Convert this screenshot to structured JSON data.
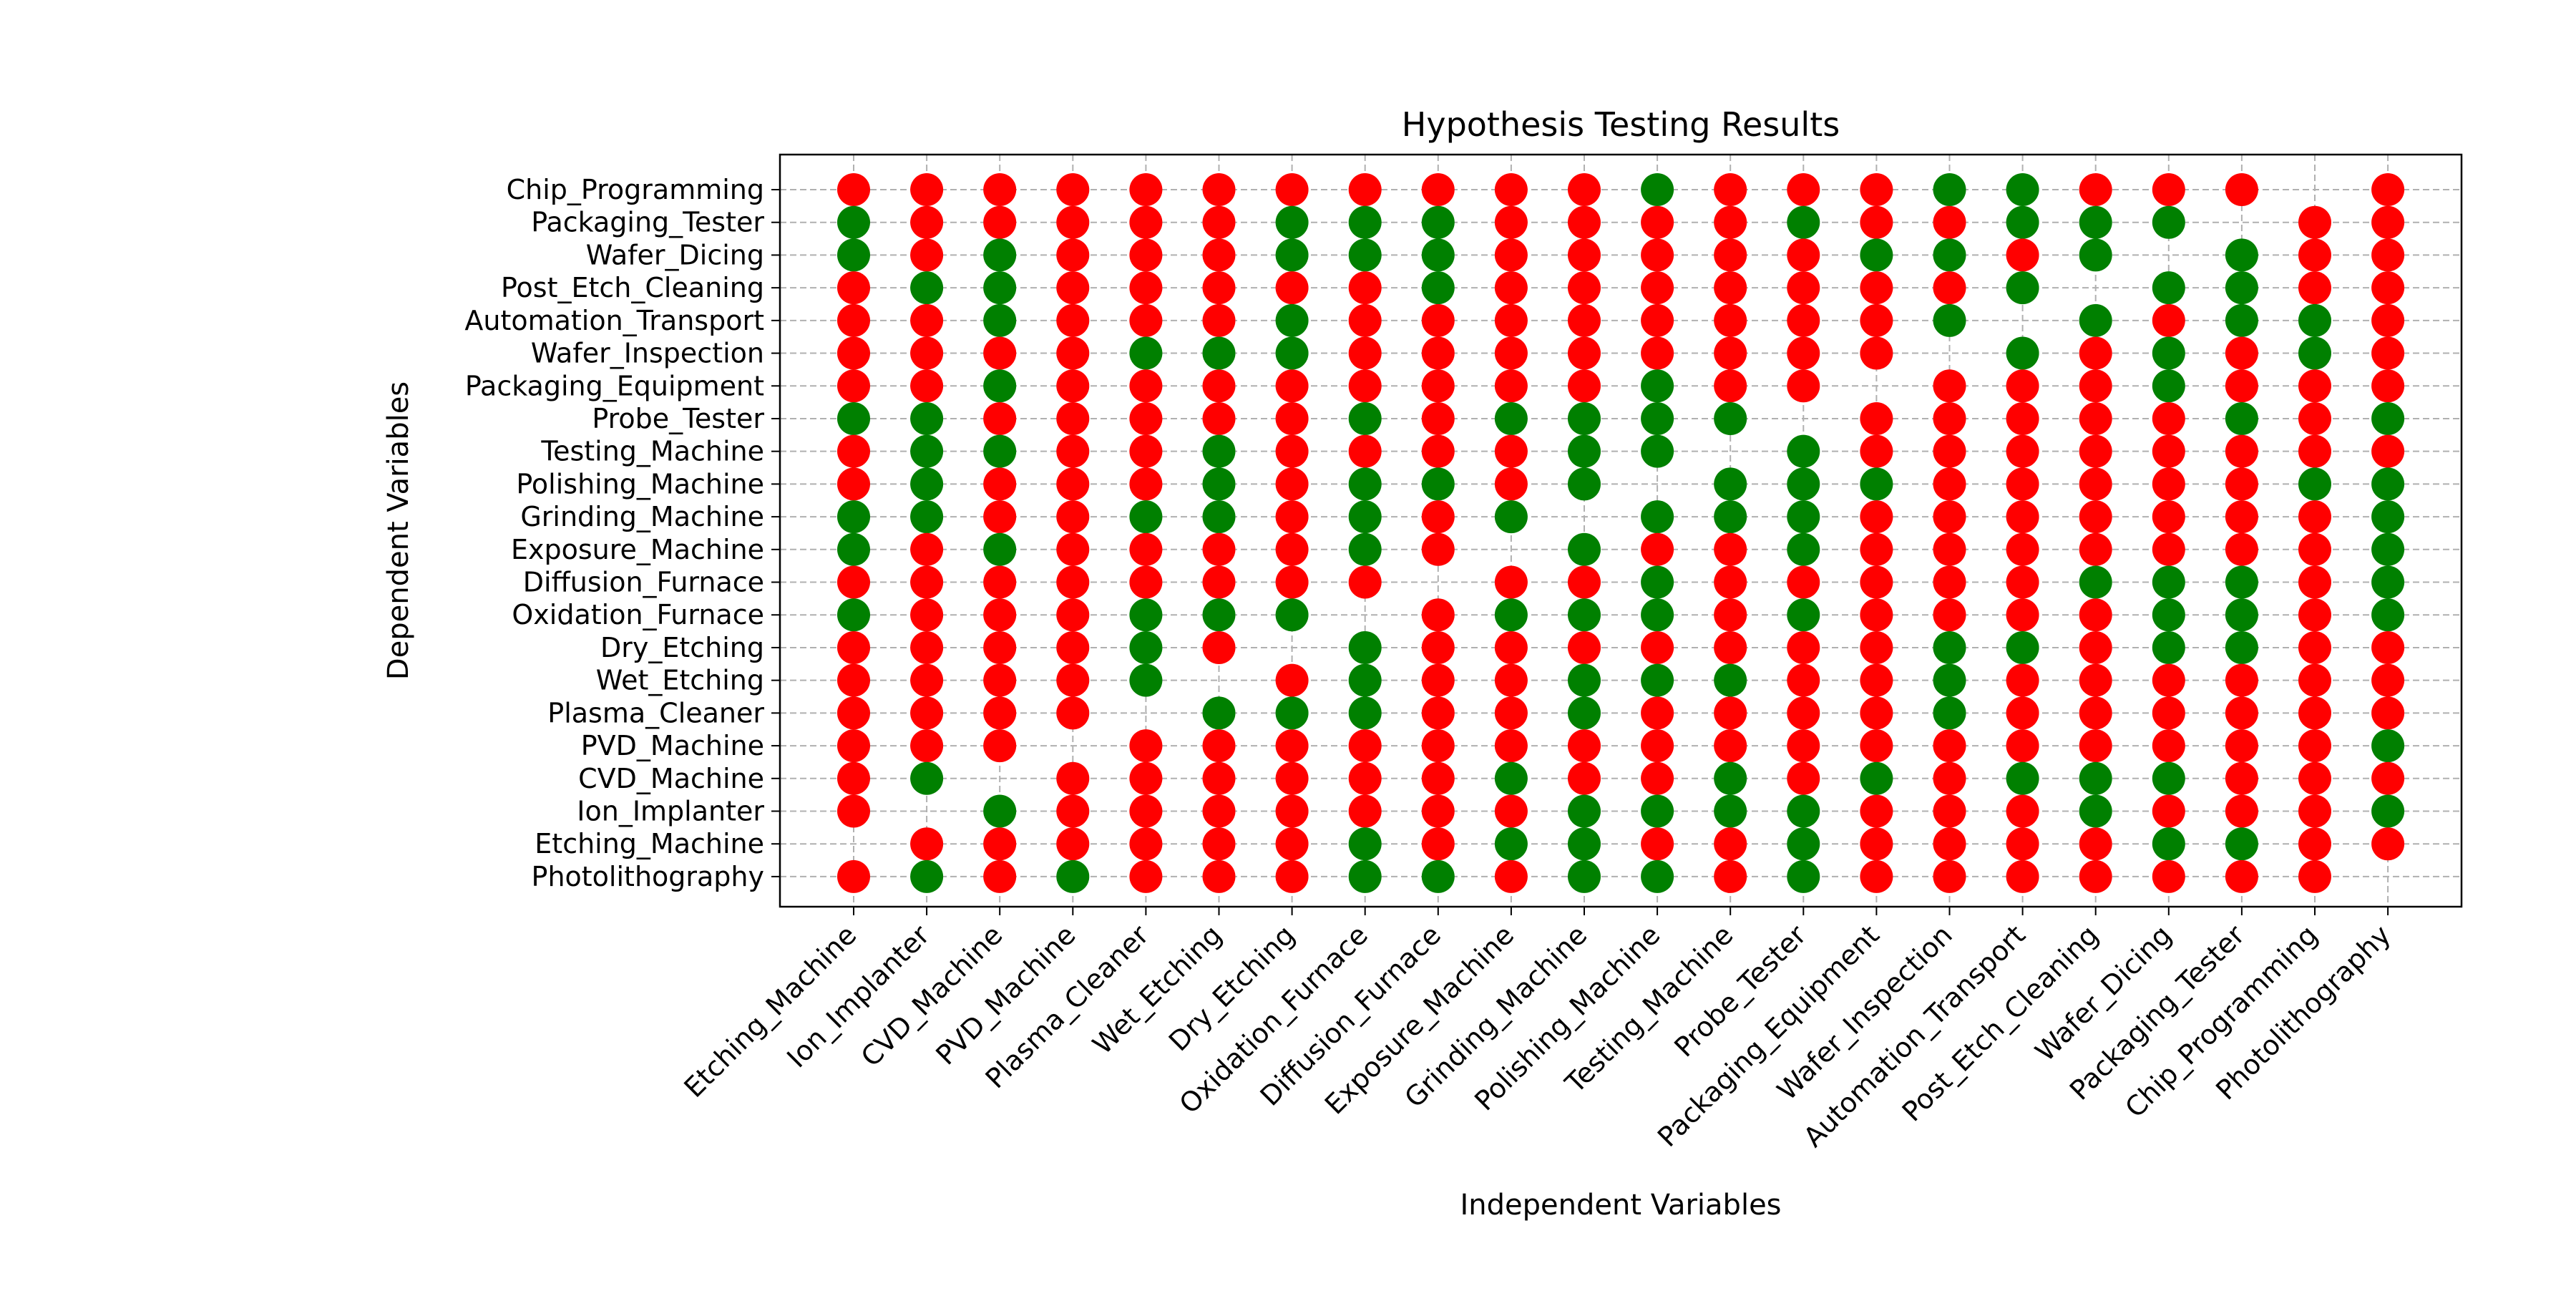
{
  "chart_data": {
    "type": "scatter",
    "title": "Hypothesis Testing Results",
    "xlabel": "Independent Variables",
    "ylabel": "Dependent Variables",
    "grid": true,
    "x_categories": [
      "Etching_Machine",
      "Ion_Implanter",
      "CVD_Machine",
      "PVD_Machine",
      "Plasma_Cleaner",
      "Wet_Etching",
      "Dry_Etching",
      "Oxidation_Furnace",
      "Diffusion_Furnace",
      "Exposure_Machine",
      "Grinding_Machine",
      "Polishing_Machine",
      "Testing_Machine",
      "Probe_Tester",
      "Packaging_Equipment",
      "Wafer_Inspection",
      "Automation_Transport",
      "Post_Etch_Cleaning",
      "Wafer_Dicing",
      "Packaging_Tester",
      "Chip_Programming",
      "Photolithography"
    ],
    "y_categories": [
      "Chip_Programming",
      "Packaging_Tester",
      "Wafer_Dicing",
      "Post_Etch_Cleaning",
      "Automation_Transport",
      "Wafer_Inspection",
      "Packaging_Equipment",
      "Probe_Tester",
      "Testing_Machine",
      "Polishing_Machine",
      "Grinding_Machine",
      "Exposure_Machine",
      "Diffusion_Furnace",
      "Oxidation_Furnace",
      "Dry_Etching",
      "Wet_Etching",
      "Plasma_Cleaner",
      "PVD_Machine",
      "CVD_Machine",
      "Ion_Implanter",
      "Etching_Machine",
      "Photolithography"
    ],
    "colors": {
      "R": "#ff0000",
      "G": "#008000"
    },
    "matrix": [
      "RRRRRRRRRRRGRRRGGRRR.R",
      "GRRRRRGGGRRRRGRRGGG.RR",
      "GRGRRRGGGRRRRRGGRG.GRR",
      "RGGRRRRRGRRRRRRRG.GGRR",
      "RRGRRRGRRRRRRRRG.GRGGR",
      "RRRRGGGRRRRRRRR.GRGRGR",
      "RRGRRRRRRRRGRR.RRRGRRR",
      "GGRRRRRGRGGGG.RRRRRGRG",
      "RGGRRGRRRRGG.GRRRRRRRR",
      "RGRRRGRGGRG.GGGRRRRRGG",
      "GGRRGGRGRG.GGGRRRRRRRG",
      "GRGRRRRGR.GRRGRRRRRRRG",
      "RRRRRRRR.RRGRRRRRGGGRG",
      "GRRRGGG.RGGGRGRRRRGGRG",
      "RRRRGR.GRRRRRRRGGRGGRR",
      "RRRRG.RGRRGGGRRGRRRRRR",
      "RRRR.GGGRRGRRRRGRRRRRR",
      "RRR.RRRRRRRRRRRRRRRRRG",
      "RG.RRRRRRGRRGRGRGGGRRR",
      "R.GRRRRRRRGGGGRRRGRRRG",
      ".RRRRRRGRGGRRGRRRRGGRR",
      "RGRGRRRGGRGGRGRRRRRRR."
    ]
  }
}
